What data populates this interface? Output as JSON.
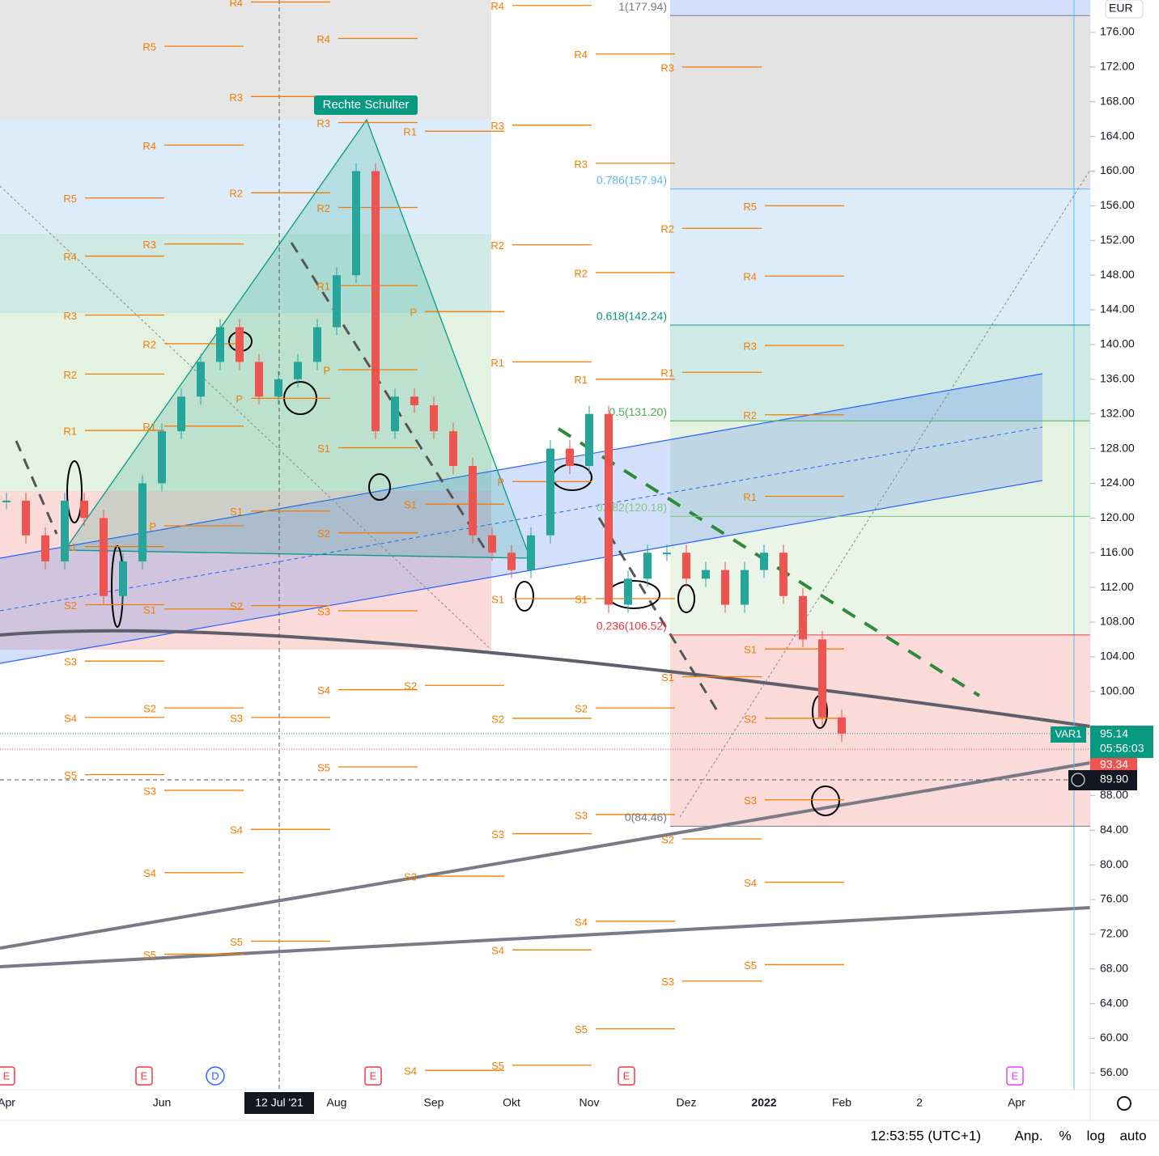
{
  "chart_data": {
    "type": "candle",
    "currency": "EUR",
    "annotation": "Rechte Schulter",
    "indicator_label": "VAR1",
    "last_price": 95.14,
    "countdown": "05:56:03",
    "prev_price": 93.34,
    "crosshair_price": {
      "value": 89.9,
      "label": "89.90"
    },
    "crosshair_date": "12 Jul '21",
    "categories": [
      "Apr",
      null,
      null,
      null,
      null,
      null,
      null,
      null,
      "Jun",
      null,
      null,
      null,
      null,
      null,
      null,
      null,
      null,
      "Aug",
      null,
      null,
      null,
      null,
      "Sep",
      null,
      null,
      null,
      "Okt",
      null,
      null,
      null,
      "Nov",
      null,
      null,
      null,
      null,
      "Dez",
      null,
      null,
      null,
      "2022",
      null,
      null,
      null,
      "Feb",
      null,
      null,
      null,
      "2",
      null,
      null,
      null,
      null,
      "Apr",
      null,
      null,
      null
    ],
    "series": [
      {
        "color_up": "#26a69a",
        "color_down": "#ef5350",
        "values": [
          122,
          118,
          115,
          122,
          120,
          111,
          115,
          124,
          130,
          134,
          138,
          142,
          138,
          134,
          136,
          138,
          142,
          148,
          160,
          130,
          134,
          133,
          130,
          126,
          118,
          116,
          114,
          118,
          128,
          126,
          132,
          110,
          113,
          116,
          116,
          113,
          114,
          110,
          114,
          116,
          111,
          106,
          97,
          95.14,
          null,
          null,
          null,
          null,
          null,
          null,
          null,
          null,
          null,
          null,
          null,
          null
        ]
      }
    ],
    "ylim": [
      54.08,
      179.73
    ],
    "yticks": [
      {
        "value": 56,
        "label": "56.00"
      },
      {
        "value": 60,
        "label": "60.00"
      },
      {
        "value": 64,
        "label": "64.00"
      },
      {
        "value": 68,
        "label": "68.00"
      },
      {
        "value": 72,
        "label": "72.00"
      },
      {
        "value": 76,
        "label": "76.00"
      },
      {
        "value": 80,
        "label": "80.00"
      },
      {
        "value": 84,
        "label": "84.00"
      },
      {
        "value": 88,
        "label": "88.00"
      },
      {
        "value": 100,
        "label": "100.00"
      },
      {
        "value": 104,
        "label": "104.00"
      },
      {
        "value": 108,
        "label": "108.00"
      },
      {
        "value": 112,
        "label": "112.00"
      },
      {
        "value": 116,
        "label": "116.00"
      },
      {
        "value": 120,
        "label": "120.00"
      },
      {
        "value": 124,
        "label": "124.00"
      },
      {
        "value": 128,
        "label": "128.00"
      },
      {
        "value": 132,
        "label": "132.00"
      },
      {
        "value": 136,
        "label": "136.00"
      },
      {
        "value": 140,
        "label": "140.00"
      },
      {
        "value": 144,
        "label": "144.00"
      },
      {
        "value": 148,
        "label": "148.00"
      },
      {
        "value": 152,
        "label": "152.00"
      },
      {
        "value": 156,
        "label": "156.00"
      },
      {
        "value": 160,
        "label": "160.00"
      },
      {
        "value": 164,
        "label": "164.00"
      },
      {
        "value": 168,
        "label": "168.00"
      },
      {
        "value": 172,
        "label": "172.00"
      },
      {
        "value": 176,
        "label": "176.00"
      }
    ],
    "fib": [
      {
        "label": "1(177.94)",
        "value": 177.94,
        "color": "#787b86"
      },
      {
        "label": "0.786(157.94)",
        "value": 157.94,
        "color": "#64b5f6"
      },
      {
        "label": "0.618(142.24)",
        "value": 142.24,
        "color": "#089981"
      },
      {
        "label": "0.5(131.20)",
        "value": 131.2,
        "color": "#4caf50"
      },
      {
        "label": "0.382(120.18)",
        "value": 120.18,
        "color": "#81c784"
      },
      {
        "label": "0.236(106.52)",
        "value": 106.52,
        "color": "#f23645"
      },
      {
        "label": "0(84.46)",
        "value": 84.46,
        "color": "#787b86"
      }
    ],
    "pivots": [
      {
        "levels": [
          {
            "label": "R5",
            "value": 156.9
          },
          {
            "label": "R4",
            "value": 150.2
          },
          {
            "label": "R3",
            "value": 143.4
          },
          {
            "label": "R2",
            "value": 136.6
          },
          {
            "label": "R1",
            "value": 130.1
          },
          {
            "label": "S1",
            "value": 116.7
          },
          {
            "label": "S2",
            "value": 110
          },
          {
            "label": "S3",
            "value": 103.5
          },
          {
            "label": "S4",
            "value": 97
          },
          {
            "label": "S5",
            "value": 90.4
          }
        ]
      },
      {
        "levels": [
          {
            "label": "R5",
            "value": 174.4
          },
          {
            "label": "R4",
            "value": 163
          },
          {
            "label": "R3",
            "value": 151.6
          },
          {
            "label": "R2",
            "value": 140.1
          },
          {
            "label": "R1",
            "value": 130.6
          },
          {
            "label": "P",
            "value": 119.1
          },
          {
            "label": "S1",
            "value": 109.5
          },
          {
            "label": "S2",
            "value": 98.1
          },
          {
            "label": "S3",
            "value": 88.6
          },
          {
            "label": "S4",
            "value": 79.1
          },
          {
            "label": "S5",
            "value": 69.7
          }
        ]
      },
      {
        "levels": [
          {
            "label": "R4",
            "value": 179.5
          },
          {
            "label": "R3",
            "value": 168.6
          },
          {
            "label": "R2",
            "value": 157.5
          },
          {
            "label": "P",
            "value": 133.8
          },
          {
            "label": "S1",
            "value": 120.8
          },
          {
            "label": "S2",
            "value": 109.9
          },
          {
            "label": "S3",
            "value": 97
          },
          {
            "label": "S4",
            "value": 84.1
          },
          {
            "label": "S5",
            "value": 71.2
          }
        ]
      },
      {
        "levels": [
          {
            "label": "R4",
            "value": 175.3
          },
          {
            "label": "R3",
            "value": 165.6
          },
          {
            "label": "R2",
            "value": 155.8
          },
          {
            "label": "R1",
            "value": 146.8
          },
          {
            "label": "P",
            "value": 137.1
          },
          {
            "label": "S1",
            "value": 128.1
          },
          {
            "label": "S2",
            "value": 118.3
          },
          {
            "label": "S3",
            "value": 109.3
          },
          {
            "label": "S4",
            "value": 100.2
          },
          {
            "label": "S5",
            "value": 91.3
          }
        ]
      },
      {
        "levels": [
          {
            "label": "R1",
            "value": 164.6
          },
          {
            "label": "P",
            "value": 143.8
          },
          {
            "label": "S1",
            "value": 121.6
          },
          {
            "label": "S2",
            "value": 100.7
          },
          {
            "label": "S3",
            "value": 78.7
          },
          {
            "label": "S4",
            "value": 56.3
          }
        ]
      },
      {
        "levels": [
          {
            "label": "R4",
            "value": 179.1
          },
          {
            "label": "R3",
            "value": 165.3
          },
          {
            "label": "R2",
            "value": 151.5
          },
          {
            "label": "R1",
            "value": 138
          },
          {
            "label": "P",
            "value": 124.2
          },
          {
            "label": "S1",
            "value": 110.7
          },
          {
            "label": "S2",
            "value": 96.9
          },
          {
            "label": "S3",
            "value": 83.6
          },
          {
            "label": "S4",
            "value": 70.2
          },
          {
            "label": "S5",
            "value": 56.9
          }
        ]
      },
      {
        "levels": [
          {
            "label": "R4",
            "value": 173.5
          },
          {
            "label": "R3",
            "value": 160.9
          },
          {
            "label": "R2",
            "value": 148.3
          },
          {
            "label": "R1",
            "value": 136
          },
          {
            "label": "S1",
            "value": 110.7
          },
          {
            "label": "S2",
            "value": 98.1
          },
          {
            "label": "S3",
            "value": 85.8
          },
          {
            "label": "S4",
            "value": 73.5
          },
          {
            "label": "S5",
            "value": 61.1
          }
        ]
      },
      {
        "levels": [
          {
            "label": "R3",
            "value": 172
          },
          {
            "label": "R2",
            "value": 153.4
          },
          {
            "label": "R1",
            "value": 136.8
          },
          {
            "label": "S1",
            "value": 101.7
          },
          {
            "label": "S2",
            "value": 83
          },
          {
            "label": "S3",
            "value": 66.6
          }
        ]
      },
      {
        "levels": [
          {
            "label": "R5",
            "value": 156
          },
          {
            "label": "R4",
            "value": 147.9
          },
          {
            "label": "R3",
            "value": 139.9
          },
          {
            "label": "R2",
            "value": 131.9
          },
          {
            "label": "R1",
            "value": 122.5
          },
          {
            "label": "S1",
            "value": 104.9
          },
          {
            "label": "S2",
            "value": 96.9
          },
          {
            "label": "S3",
            "value": 87.5
          },
          {
            "label": "S4",
            "value": 78
          },
          {
            "label": "S5",
            "value": 68.5
          }
        ]
      }
    ],
    "events": [
      "E",
      "E",
      "D",
      "E",
      "E",
      "E"
    ],
    "status_bar": {
      "time": "12:53:55 (UTC+1)",
      "buttons": [
        "Anp.",
        "%",
        "log",
        "auto"
      ]
    }
  }
}
